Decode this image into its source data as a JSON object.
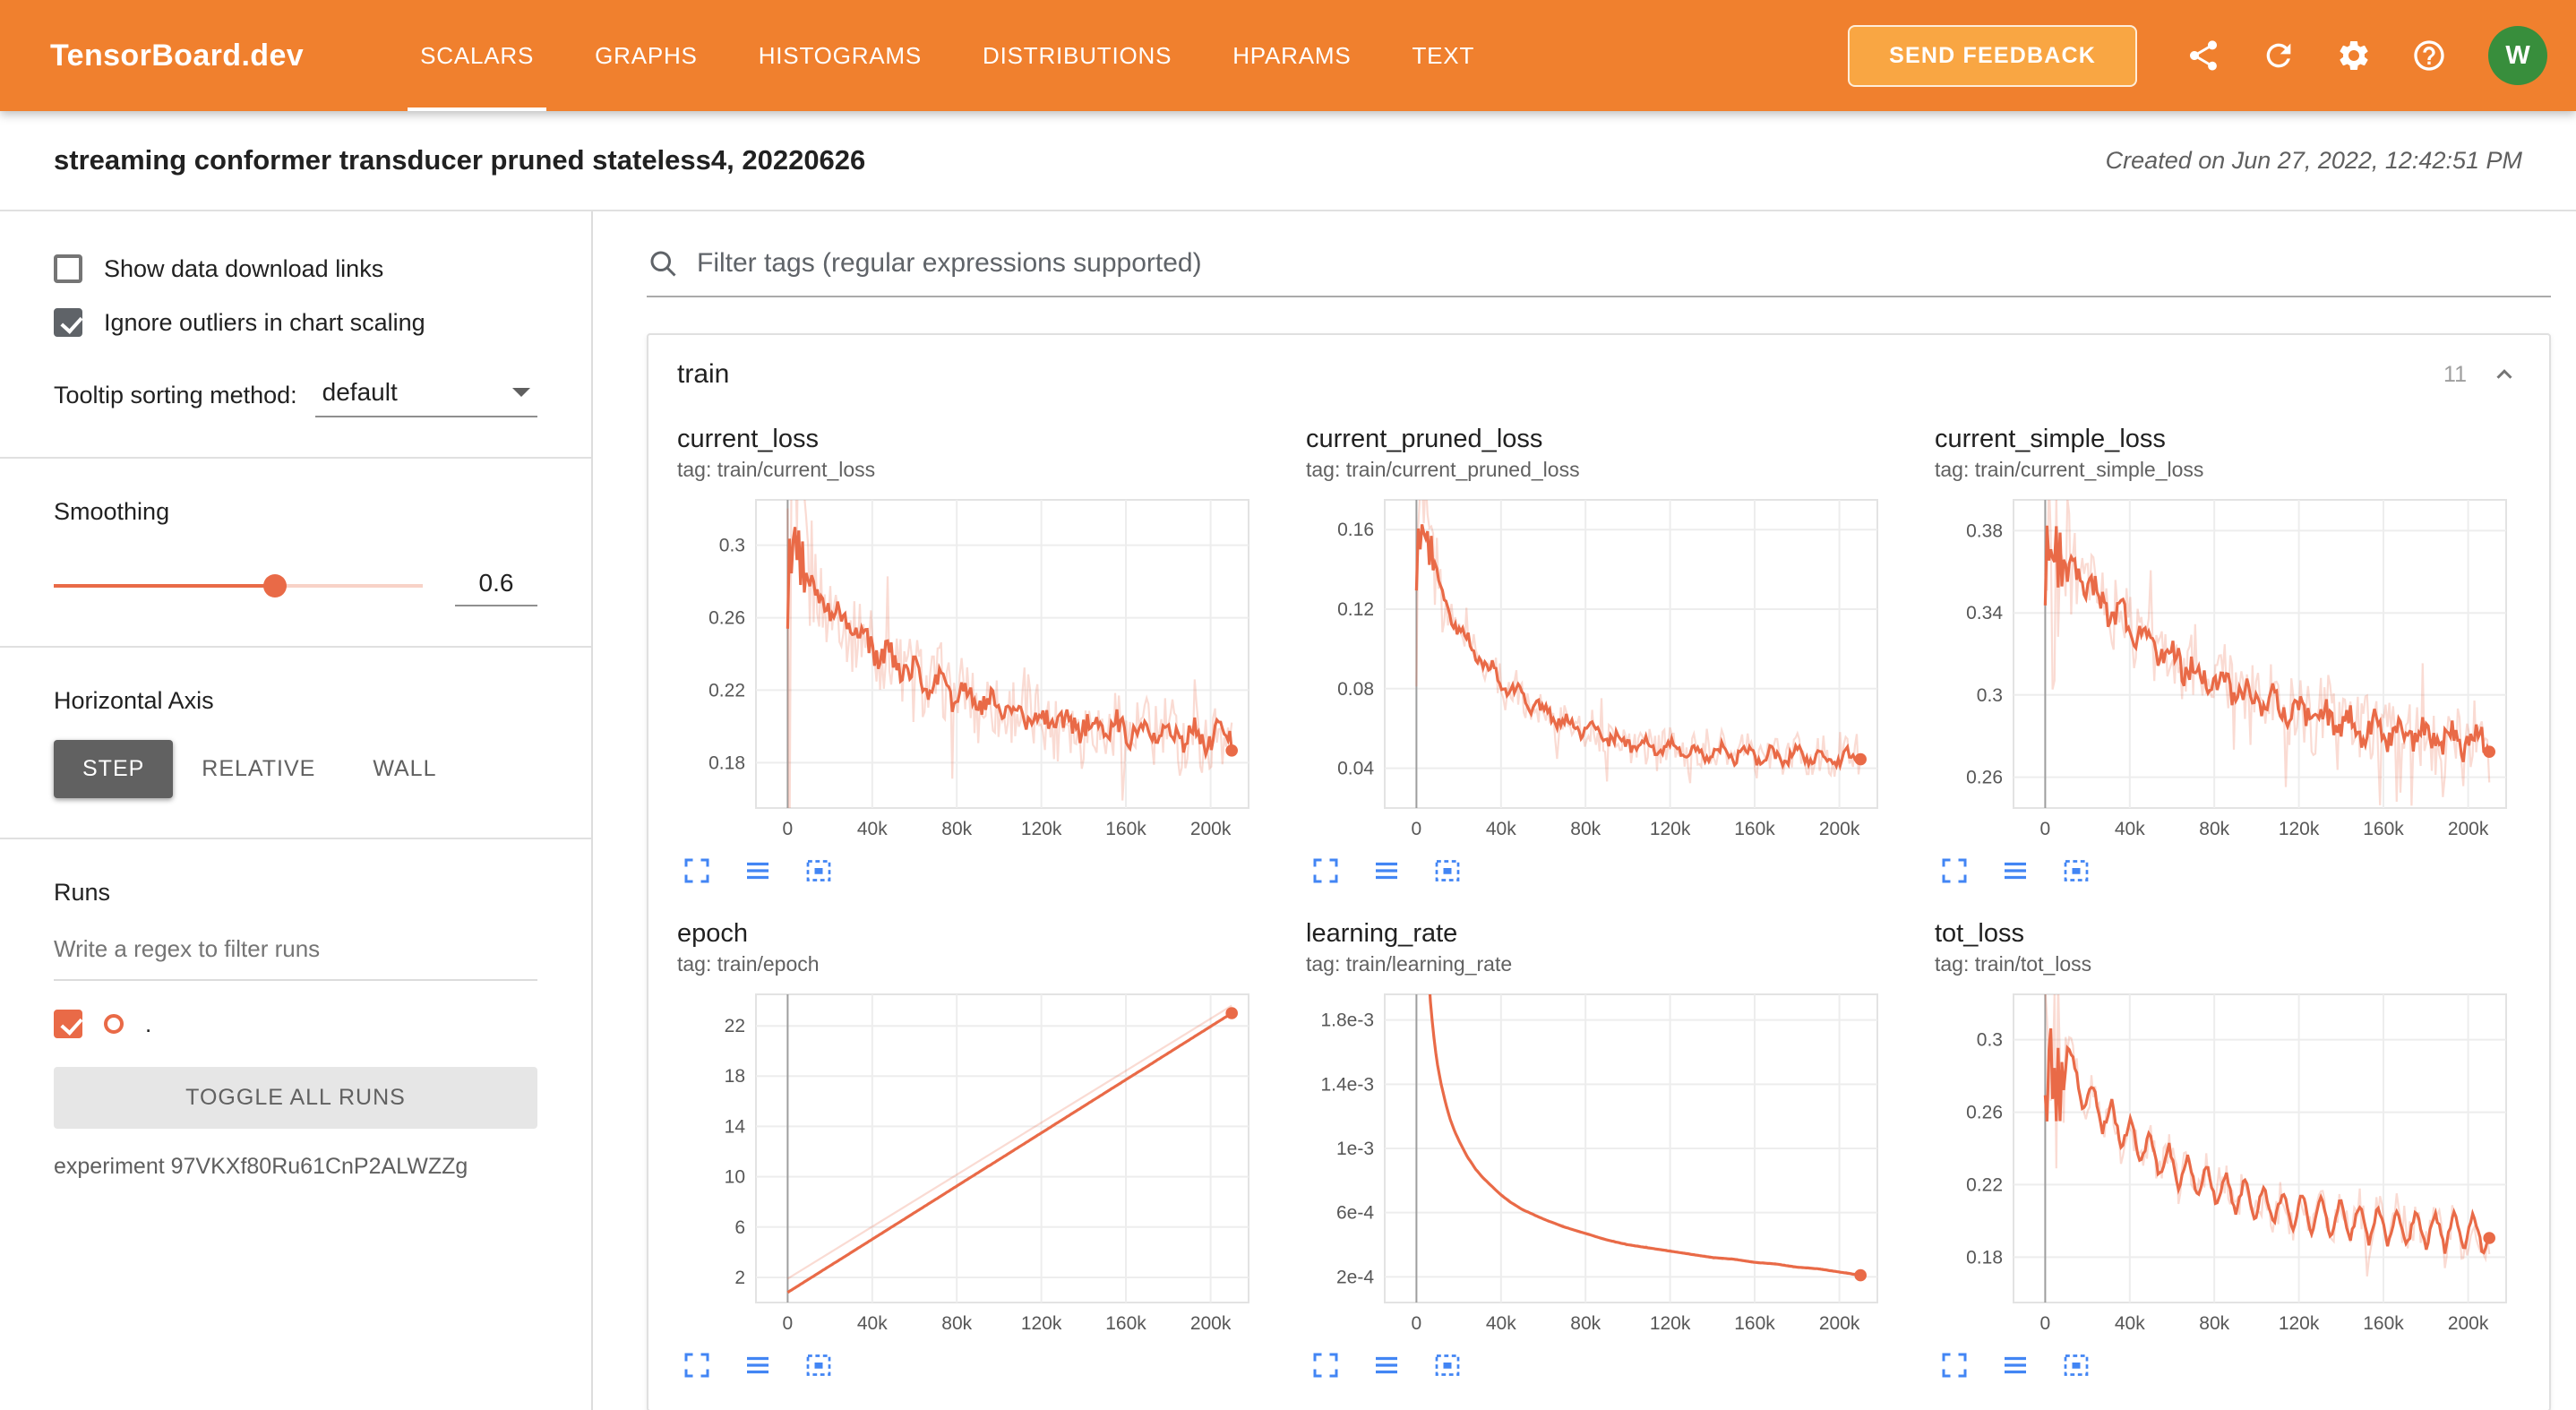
{
  "colors": {
    "header_bg": "#f0802e",
    "accent_line": "#e96a47",
    "raw_opacity": 0.24,
    "icon_blue": "#4285f4",
    "avatar_bg": "#388e3c",
    "axis_active_bg": "#616161"
  },
  "icons": {
    "topbar": [
      "share-icon",
      "refresh-icon",
      "settings-icon",
      "help-icon"
    ],
    "search": "search-icon",
    "collapse": "chevron-up-icon",
    "chart_actions": [
      "expand-chart-icon",
      "chart-data-icon",
      "fit-domain-icon"
    ]
  },
  "app": {
    "title": "TensorBoard.dev",
    "nav": [
      "SCALARS",
      "GRAPHS",
      "HISTOGRAMS",
      "DISTRIBUTIONS",
      "HPARAMS",
      "TEXT"
    ],
    "active_nav": "SCALARS",
    "send_feedback_label": "SEND FEEDBACK",
    "avatar_initial": "W"
  },
  "header": {
    "experiment_title": "streaming conformer transducer pruned stateless4, 20220626",
    "created_text": "Created on Jun 27, 2022, 12:42:51 PM"
  },
  "sidebar": {
    "checkboxes": [
      {
        "label": "Show data download links",
        "checked": false
      },
      {
        "label": "Ignore outliers in chart scaling",
        "checked": true
      }
    ],
    "tooltip_sorting_label": "Tooltip sorting method:",
    "tooltip_sorting_value": "default",
    "smoothing_label": "Smoothing",
    "smoothing_value": "0.6",
    "horizontal_axis_label": "Horizontal Axis",
    "horizontal_axis_options": [
      "STEP",
      "RELATIVE",
      "WALL"
    ],
    "horizontal_axis_active": "STEP",
    "runs_label": "Runs",
    "runs_filter_placeholder": "Write a regex to filter runs",
    "run_checked": true,
    "run_name": ".",
    "toggle_all_label": "TOGGLE ALL RUNS",
    "experiment_id_text": "experiment 97VKXf80Ru61CnP2ALWZZg"
  },
  "main": {
    "filter_placeholder": "Filter tags (regular expressions supported)",
    "group_name": "train",
    "group_count": "11"
  },
  "chart_data": [
    {
      "type": "line",
      "title": "current_loss",
      "tag": "tag: train/current_loss",
      "x_ticks": {
        "vals": [
          0,
          40,
          80,
          120,
          160,
          200
        ],
        "labels": [
          "0",
          "40k",
          "80k",
          "120k",
          "160k",
          "200k"
        ]
      },
      "y_ticks": {
        "vals": [
          0.18,
          0.22,
          0.26,
          0.3
        ],
        "labels": [
          "0.18",
          "0.22",
          "0.26",
          "0.3"
        ]
      },
      "xlim": [
        -15,
        218
      ],
      "ylim": [
        0.155,
        0.325
      ],
      "noise": 0.02,
      "spike_until": 14,
      "spike_amp": 0.09,
      "jitter": 0.006,
      "seed": 1,
      "points": [
        [
          0,
          0.25
        ],
        [
          1,
          0.31
        ],
        [
          2,
          0.27
        ],
        [
          3,
          0.325
        ],
        [
          4,
          0.285
        ],
        [
          5,
          0.315
        ],
        [
          6,
          0.278
        ],
        [
          7,
          0.302
        ],
        [
          8,
          0.27
        ],
        [
          9,
          0.295
        ],
        [
          10,
          0.28
        ],
        [
          12,
          0.282
        ],
        [
          18,
          0.262
        ],
        [
          24,
          0.266
        ],
        [
          30,
          0.248
        ],
        [
          36,
          0.254
        ],
        [
          42,
          0.236
        ],
        [
          48,
          0.243
        ],
        [
          54,
          0.227
        ],
        [
          60,
          0.235
        ],
        [
          66,
          0.219
        ],
        [
          72,
          0.228
        ],
        [
          78,
          0.213
        ],
        [
          84,
          0.222
        ],
        [
          90,
          0.207
        ],
        [
          96,
          0.217
        ],
        [
          102,
          0.203
        ],
        [
          108,
          0.213
        ],
        [
          114,
          0.2
        ],
        [
          120,
          0.21
        ],
        [
          126,
          0.197
        ],
        [
          132,
          0.208
        ],
        [
          138,
          0.194
        ],
        [
          144,
          0.206
        ],
        [
          150,
          0.193
        ],
        [
          156,
          0.204
        ],
        [
          162,
          0.191
        ],
        [
          168,
          0.202
        ],
        [
          174,
          0.19
        ],
        [
          180,
          0.201
        ],
        [
          186,
          0.189
        ],
        [
          192,
          0.2
        ],
        [
          198,
          0.188
        ],
        [
          204,
          0.2
        ],
        [
          210,
          0.192
        ]
      ]
    },
    {
      "type": "line",
      "title": "current_pruned_loss",
      "tag": "tag: train/current_pruned_loss",
      "x_ticks": {
        "vals": [
          0,
          40,
          80,
          120,
          160,
          200
        ],
        "labels": [
          "0",
          "40k",
          "80k",
          "120k",
          "160k",
          "200k"
        ]
      },
      "y_ticks": {
        "vals": [
          0.04,
          0.08,
          0.12,
          0.16
        ],
        "labels": [
          "0.04",
          "0.08",
          "0.12",
          "0.16"
        ]
      },
      "xlim": [
        -15,
        218
      ],
      "ylim": [
        0.02,
        0.175
      ],
      "noise": 0.009,
      "spike_until": 14,
      "spike_amp": 0.05,
      "jitter": 0.003,
      "seed": 2,
      "points": [
        [
          0,
          0.13
        ],
        [
          1,
          0.168
        ],
        [
          2,
          0.145
        ],
        [
          3,
          0.17
        ],
        [
          4,
          0.15
        ],
        [
          5,
          0.162
        ],
        [
          6,
          0.142
        ],
        [
          7,
          0.155
        ],
        [
          8,
          0.138
        ],
        [
          9,
          0.148
        ],
        [
          10,
          0.133
        ],
        [
          12,
          0.129
        ],
        [
          18,
          0.11
        ],
        [
          24,
          0.108
        ],
        [
          30,
          0.092
        ],
        [
          36,
          0.092
        ],
        [
          42,
          0.078
        ],
        [
          48,
          0.081
        ],
        [
          54,
          0.069
        ],
        [
          60,
          0.073
        ],
        [
          66,
          0.061
        ],
        [
          72,
          0.066
        ],
        [
          78,
          0.056
        ],
        [
          84,
          0.062
        ],
        [
          90,
          0.052
        ],
        [
          96,
          0.058
        ],
        [
          102,
          0.049
        ],
        [
          108,
          0.056
        ],
        [
          114,
          0.047
        ],
        [
          120,
          0.054
        ],
        [
          126,
          0.045
        ],
        [
          132,
          0.052
        ],
        [
          138,
          0.044
        ],
        [
          144,
          0.051
        ],
        [
          150,
          0.043
        ],
        [
          156,
          0.051
        ],
        [
          162,
          0.042
        ],
        [
          168,
          0.05
        ],
        [
          174,
          0.042
        ],
        [
          180,
          0.05
        ],
        [
          186,
          0.042
        ],
        [
          192,
          0.049
        ],
        [
          198,
          0.041
        ],
        [
          204,
          0.049
        ],
        [
          210,
          0.045
        ]
      ]
    },
    {
      "type": "line",
      "title": "current_simple_loss",
      "tag": "tag: train/current_simple_loss",
      "x_ticks": {
        "vals": [
          0,
          40,
          80,
          120,
          160,
          200
        ],
        "labels": [
          "0",
          "40k",
          "80k",
          "120k",
          "160k",
          "200k"
        ]
      },
      "y_ticks": {
        "vals": [
          0.26,
          0.3,
          0.34,
          0.38
        ],
        "labels": [
          "0.26",
          "0.3",
          "0.34",
          "0.38"
        ]
      },
      "xlim": [
        -15,
        218
      ],
      "ylim": [
        0.245,
        0.395
      ],
      "noise": 0.018,
      "spike_until": 14,
      "spike_amp": 0.08,
      "jitter": 0.006,
      "seed": 3,
      "points": [
        [
          0,
          0.34
        ],
        [
          1,
          0.39
        ],
        [
          2,
          0.35
        ],
        [
          3,
          0.392
        ],
        [
          4,
          0.352
        ],
        [
          5,
          0.385
        ],
        [
          6,
          0.35
        ],
        [
          7,
          0.375
        ],
        [
          8,
          0.352
        ],
        [
          9,
          0.372
        ],
        [
          10,
          0.355
        ],
        [
          12,
          0.368
        ],
        [
          18,
          0.349
        ],
        [
          24,
          0.354
        ],
        [
          30,
          0.336
        ],
        [
          36,
          0.343
        ],
        [
          42,
          0.326
        ],
        [
          48,
          0.333
        ],
        [
          54,
          0.317
        ],
        [
          60,
          0.325
        ],
        [
          66,
          0.309
        ],
        [
          72,
          0.317
        ],
        [
          78,
          0.302
        ],
        [
          84,
          0.311
        ],
        [
          90,
          0.297
        ],
        [
          96,
          0.306
        ],
        [
          102,
          0.292
        ],
        [
          108,
          0.302
        ],
        [
          114,
          0.288
        ],
        [
          120,
          0.298
        ],
        [
          126,
          0.284
        ],
        [
          132,
          0.295
        ],
        [
          138,
          0.281
        ],
        [
          144,
          0.292
        ],
        [
          150,
          0.279
        ],
        [
          156,
          0.29
        ],
        [
          162,
          0.277
        ],
        [
          168,
          0.288
        ],
        [
          174,
          0.275
        ],
        [
          180,
          0.286
        ],
        [
          186,
          0.273
        ],
        [
          192,
          0.284
        ],
        [
          198,
          0.272
        ],
        [
          204,
          0.283
        ],
        [
          210,
          0.272
        ]
      ]
    },
    {
      "type": "line",
      "title": "epoch",
      "tag": "tag: train/epoch",
      "x_ticks": {
        "vals": [
          0,
          40,
          80,
          120,
          160,
          200
        ],
        "labels": [
          "0",
          "40k",
          "80k",
          "120k",
          "160k",
          "200k"
        ]
      },
      "y_ticks": {
        "vals": [
          2,
          6,
          10,
          14,
          18,
          22
        ],
        "labels": [
          "2",
          "6",
          "10",
          "14",
          "18",
          "22"
        ]
      },
      "xlim": [
        -15,
        218
      ],
      "ylim": [
        0,
        24.5
      ],
      "noise": 0,
      "jitter": 0,
      "seed": 4,
      "raw": [
        [
          0,
          1.9
        ],
        [
          210,
          23.6
        ]
      ],
      "points": [
        [
          0,
          0.8
        ],
        [
          210,
          23.0
        ]
      ]
    },
    {
      "type": "line",
      "title": "learning_rate",
      "tag": "tag: train/learning_rate",
      "x_ticks": {
        "vals": [
          0,
          40,
          80,
          120,
          160,
          200
        ],
        "labels": [
          "0",
          "40k",
          "80k",
          "120k",
          "160k",
          "200k"
        ]
      },
      "y_ticks": {
        "vals": [
          0.0002,
          0.0006,
          0.001,
          0.0014,
          0.0018
        ],
        "labels": [
          "2e-4",
          "6e-4",
          "1e-3",
          "1.4e-3",
          "1.8e-3"
        ]
      },
      "xlim": [
        -15,
        218
      ],
      "ylim": [
        4e-05,
        0.00196
      ],
      "noise": 6e-06,
      "jitter": 0,
      "seed": 5,
      "points": [
        [
          4,
          0.0036
        ],
        [
          5,
          0.00235
        ],
        [
          6,
          0.002
        ],
        [
          7,
          0.00185
        ],
        [
          8,
          0.00172
        ],
        [
          9,
          0.00161
        ],
        [
          10,
          0.00152
        ],
        [
          12,
          0.00138
        ],
        [
          14,
          0.00127
        ],
        [
          16,
          0.00118
        ],
        [
          18,
          0.00111
        ],
        [
          20,
          0.00105
        ],
        [
          24,
          0.00095
        ],
        [
          28,
          0.00087
        ],
        [
          32,
          0.00081
        ],
        [
          36,
          0.00076
        ],
        [
          40,
          0.00071
        ],
        [
          45,
          0.00066
        ],
        [
          50,
          0.00062
        ],
        [
          55,
          0.00059
        ],
        [
          60,
          0.00056
        ],
        [
          70,
          0.00051
        ],
        [
          80,
          0.00047
        ],
        [
          90,
          0.00043
        ],
        [
          100,
          0.0004
        ],
        [
          110,
          0.00038
        ],
        [
          120,
          0.00036
        ],
        [
          130,
          0.00034
        ],
        [
          140,
          0.00032
        ],
        [
          150,
          0.00031
        ],
        [
          160,
          0.00029
        ],
        [
          170,
          0.00028
        ],
        [
          180,
          0.00026
        ],
        [
          190,
          0.00025
        ],
        [
          200,
          0.00023
        ],
        [
          210,
          0.00021
        ]
      ]
    },
    {
      "type": "line",
      "title": "tot_loss",
      "tag": "tag: train/tot_loss",
      "x_ticks": {
        "vals": [
          0,
          40,
          80,
          120,
          160,
          200
        ],
        "labels": [
          "0",
          "40k",
          "80k",
          "120k",
          "160k",
          "200k"
        ]
      },
      "y_ticks": {
        "vals": [
          0.18,
          0.22,
          0.26,
          0.3
        ],
        "labels": [
          "0.18",
          "0.22",
          "0.26",
          "0.3"
        ]
      },
      "xlim": [
        -15,
        218
      ],
      "ylim": [
        0.155,
        0.325
      ],
      "noise": 0.01,
      "spike_until": 11,
      "spike_amp": 0.07,
      "jitter": 0.002,
      "seed": 6,
      "points": [
        [
          0,
          0.27
        ],
        [
          0.5,
          0.33
        ],
        [
          1,
          0.232
        ],
        [
          1.5,
          0.338
        ],
        [
          2,
          0.25
        ],
        [
          2.5,
          0.332
        ],
        [
          3,
          0.222
        ],
        [
          4,
          0.31
        ],
        [
          5,
          0.242
        ],
        [
          6,
          0.3
        ],
        [
          7,
          0.256
        ],
        [
          8,
          0.292
        ],
        [
          9,
          0.263
        ],
        [
          10,
          0.298
        ],
        [
          13.5,
          0.289
        ],
        [
          18,
          0.2605
        ],
        [
          22.5,
          0.2766
        ],
        [
          27,
          0.2492
        ],
        [
          31.5,
          0.266
        ],
        [
          36,
          0.2394
        ],
        [
          40.5,
          0.257
        ],
        [
          45,
          0.2309
        ],
        [
          49.5,
          0.2492
        ],
        [
          54,
          0.2237
        ],
        [
          58.5,
          0.2425
        ],
        [
          63,
          0.2175
        ],
        [
          67.5,
          0.2367
        ],
        [
          72,
          0.2121
        ],
        [
          76.5,
          0.2318
        ],
        [
          81,
          0.2075
        ],
        [
          85.5,
          0.2275
        ],
        [
          90,
          0.2035
        ],
        [
          94.5,
          0.2238
        ],
        [
          99,
          0.2001
        ],
        [
          103.5,
          0.2206
        ],
        [
          108,
          0.1973
        ],
        [
          112.5,
          0.2178
        ],
        [
          117,
          0.1946
        ],
        [
          121.5,
          0.2155
        ],
        [
          126,
          0.1925
        ],
        [
          130.5,
          0.2135
        ],
        [
          135,
          0.1906
        ],
        [
          139.5,
          0.2117
        ],
        [
          144,
          0.189
        ],
        [
          148.5,
          0.2103
        ],
        [
          153,
          0.1876
        ],
        [
          157.5,
          0.209
        ],
        [
          162,
          0.1864
        ],
        [
          166.5,
          0.2079
        ],
        [
          171,
          0.1854
        ],
        [
          175.5,
          0.2069
        ],
        [
          180,
          0.1845
        ],
        [
          184.5,
          0.2061
        ],
        [
          189,
          0.1837
        ],
        [
          193.5,
          0.2054
        ],
        [
          198,
          0.1831
        ],
        [
          202.5,
          0.2048
        ],
        [
          207,
          0.1825
        ],
        [
          210,
          0.19
        ]
      ]
    }
  ]
}
